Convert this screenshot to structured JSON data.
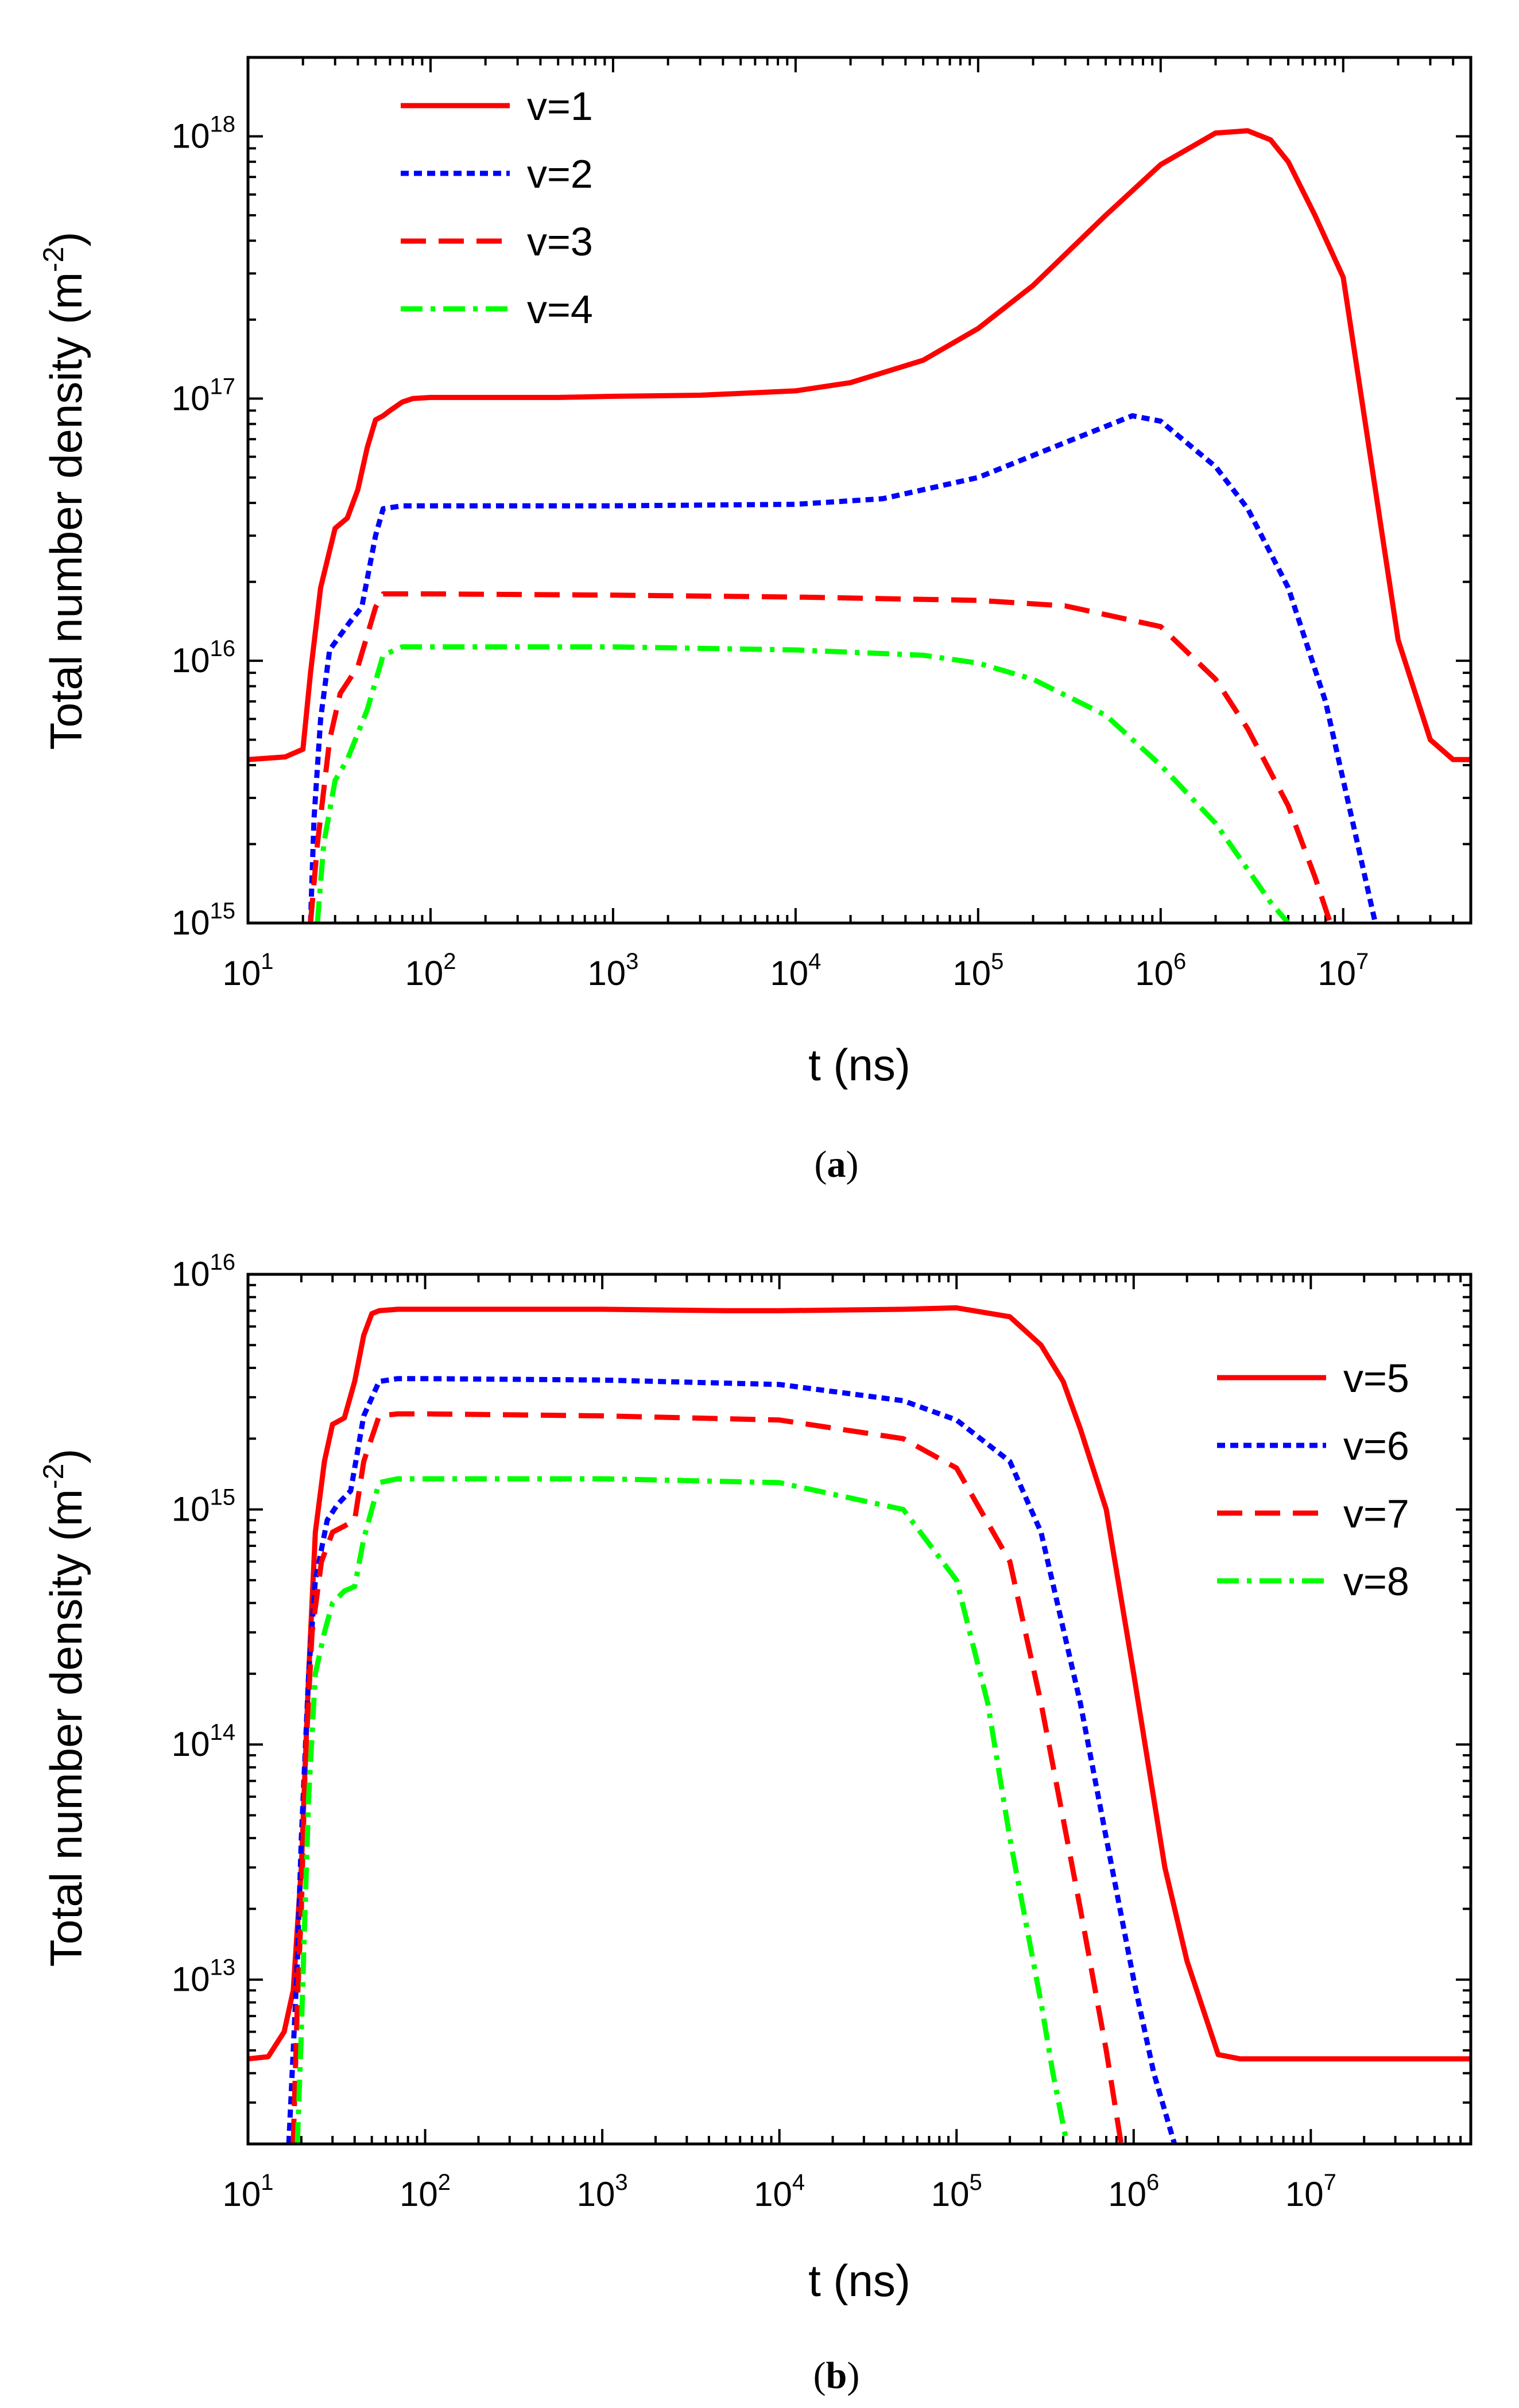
{
  "chart_data": [
    {
      "type": "line",
      "panel": "a",
      "caption_letter": "a",
      "xlabel": "t (ns)",
      "ylabel_main": "Total number density (m",
      "ylabel_sup": "-2",
      "ylabel_close": ")",
      "xscale": "log",
      "yscale": "log",
      "xlim": [
        10,
        50000000
      ],
      "ylim": [
        1000000000000000.0,
        2e+18
      ],
      "x_ticks": [
        {
          "base": "10",
          "exp": "1"
        },
        {
          "base": "10",
          "exp": "2"
        },
        {
          "base": "10",
          "exp": "3"
        },
        {
          "base": "10",
          "exp": "4"
        },
        {
          "base": "10",
          "exp": "5"
        },
        {
          "base": "10",
          "exp": "6"
        },
        {
          "base": "10",
          "exp": "7"
        }
      ],
      "y_ticks": [
        {
          "base": "10",
          "exp": "15"
        },
        {
          "base": "10",
          "exp": "16"
        },
        {
          "base": "10",
          "exp": "17"
        },
        {
          "base": "10",
          "exp": "18"
        }
      ],
      "legend_position": "top-left",
      "series": [
        {
          "name": "v=1",
          "color": "#ff0000",
          "style": "solid",
          "x": [
            10,
            16,
            20,
            22,
            25,
            30,
            35,
            40,
            45,
            50,
            55,
            60,
            70,
            80,
            100,
            200,
            500,
            1000,
            3000,
            10000,
            20000,
            50000,
            100000,
            200000,
            500000,
            1000000,
            2000000,
            3000000,
            4000000,
            5000000,
            7000000,
            10000000,
            20000000,
            30000000,
            40000000,
            50000000
          ],
          "y": [
            4200000000000000.0,
            4300000000000000.0,
            4600000000000000.0,
            9000000000000000.0,
            1.9e+16,
            3.2e+16,
            3.5e+16,
            4.5e+16,
            6.5e+16,
            8.3e+16,
            8.6e+16,
            9e+16,
            9.7e+16,
            1e+17,
            1.01e+17,
            1.01e+17,
            1.01e+17,
            1.02e+17,
            1.03e+17,
            1.07e+17,
            1.15e+17,
            1.4e+17,
            1.85e+17,
            2.7e+17,
            5e+17,
            7.8e+17,
            1.03e+18,
            1.05e+18,
            9.7e+17,
            8e+17,
            5e+17,
            2.9e+17,
            1.2e+16,
            5000000000000000.0,
            4200000000000000.0,
            4200000000000000.0
          ]
        },
        {
          "name": "v=2",
          "color": "#0000ff",
          "style": "dotted",
          "x": [
            22,
            23,
            25,
            28,
            32,
            36,
            42,
            50,
            55,
            70,
            100,
            300,
            1000,
            10000,
            30000,
            100000,
            300000,
            700000,
            1000000,
            2000000,
            3000000,
            5000000,
            8000000,
            12000000,
            15000000
          ],
          "y": [
            1000000000000000.0,
            2500000000000000.0,
            6000000000000000.0,
            1.1e+16,
            1.25e+16,
            1.4e+16,
            1.6e+16,
            3e+16,
            3.8e+16,
            3.9e+16,
            3.9e+16,
            3.9e+16,
            3.9e+16,
            3.95e+16,
            4.15e+16,
            5e+16,
            6.8e+16,
            8.6e+16,
            8.2e+16,
            5.5e+16,
            3.8e+16,
            1.9e+16,
            7000000000000000.0,
            2000000000000000.0,
            1000000000000000.0
          ]
        },
        {
          "name": "v=3",
          "color": "#ff0000",
          "style": "dashed",
          "x": [
            22,
            24,
            28,
            32,
            40,
            45,
            50,
            55,
            70,
            100,
            1000,
            10000,
            100000,
            300000,
            1000000,
            2000000,
            3000000,
            5000000,
            7000000,
            8500000
          ],
          "y": [
            1000000000000000.0,
            2000000000000000.0,
            5000000000000000.0,
            7500000000000000.0,
            9500000000000000.0,
            1.25e+16,
            1.6e+16,
            1.8e+16,
            1.8e+16,
            1.8e+16,
            1.78e+16,
            1.75e+16,
            1.7e+16,
            1.62e+16,
            1.35e+16,
            8500000000000000.0,
            5500000000000000.0,
            2800000000000000.0,
            1500000000000000.0,
            1000000000000000.0
          ]
        },
        {
          "name": "v=4",
          "color": "#00ff00",
          "style": "dashdot",
          "x": [
            24,
            26,
            30,
            35,
            45,
            55,
            70,
            100,
            1000,
            10000,
            50000,
            100000,
            200000,
            500000,
            1000000,
            2000000,
            3000000,
            4000000,
            5000000
          ],
          "y": [
            1000000000000000.0,
            2000000000000000.0,
            3500000000000000.0,
            4200000000000000.0,
            6500000000000000.0,
            1.05e+16,
            1.13e+16,
            1.13e+16,
            1.13e+16,
            1.1e+16,
            1.05e+16,
            9800000000000000.0,
            8500000000000000.0,
            6200000000000000.0,
            4000000000000000.0,
            2400000000000000.0,
            1600000000000000.0,
            1200000000000000.0,
            1000000000000000.0
          ]
        }
      ]
    },
    {
      "type": "line",
      "panel": "b",
      "caption_letter": "b",
      "xlabel": "t (ns)",
      "ylabel_main": "Total number density (m",
      "ylabel_sup": "-2",
      "ylabel_close": ")",
      "xscale": "log",
      "yscale": "log",
      "xlim": [
        10,
        80000000
      ],
      "ylim": [
        2000000000000.0,
        1e+16
      ],
      "x_ticks": [
        {
          "base": "10",
          "exp": "1"
        },
        {
          "base": "10",
          "exp": "2"
        },
        {
          "base": "10",
          "exp": "3"
        },
        {
          "base": "10",
          "exp": "4"
        },
        {
          "base": "10",
          "exp": "5"
        },
        {
          "base": "10",
          "exp": "6"
        },
        {
          "base": "10",
          "exp": "7"
        }
      ],
      "y_ticks": [
        {
          "base": "10",
          "exp": "13"
        },
        {
          "base": "10",
          "exp": "14"
        },
        {
          "base": "10",
          "exp": "15"
        },
        {
          "base": "10",
          "exp": "16"
        }
      ],
      "legend_position": "right",
      "series": [
        {
          "name": "v=5",
          "color": "#ff0000",
          "style": "solid",
          "x": [
            10,
            13,
            16,
            18,
            20,
            22,
            24,
            27,
            30,
            35,
            40,
            45,
            50,
            55,
            70,
            100,
            1000,
            5000,
            10000,
            50000,
            100000,
            200000,
            300000,
            400000,
            500000,
            700000,
            1000000,
            1500000,
            2000000,
            3000000,
            4000000,
            10000000,
            80000000
          ],
          "y": [
            4600000000000.0,
            4700000000000.0,
            6000000000000.0,
            9000000000000.0,
            30000000000000.0,
            200000000000000.0,
            800000000000000.0,
            1600000000000000.0,
            2300000000000000.0,
            2450000000000000.0,
            3500000000000000.0,
            5500000000000000.0,
            6800000000000000.0,
            7000000000000000.0,
            7100000000000000.0,
            7100000000000000.0,
            7100000000000000.0,
            7000000000000000.0,
            7000000000000000.0,
            7100000000000000.0,
            7200000000000000.0,
            6600000000000000.0,
            5000000000000000.0,
            3500000000000000.0,
            2200000000000000.0,
            1000000000000000.0,
            200000000000000.0,
            30000000000000.0,
            12000000000000.0,
            4800000000000.0,
            4600000000000.0,
            4600000000000.0,
            4600000000000.0
          ]
        },
        {
          "name": "v=6",
          "color": "#0000ff",
          "style": "dotted",
          "x": [
            17,
            18,
            19,
            20,
            22,
            24,
            28,
            32,
            38,
            45,
            55,
            70,
            100,
            1000,
            10000,
            50000,
            100000,
            200000,
            300000,
            500000,
            700000,
            1000000,
            1300000,
            1700000
          ],
          "y": [
            2000000000000.0,
            5000000000000.0,
            12000000000000.0,
            40000000000000.0,
            200000000000000.0,
            500000000000000.0,
            900000000000000.0,
            1050000000000000.0,
            1200000000000000.0,
            2500000000000000.0,
            3500000000000000.0,
            3600000000000000.0,
            3600000000000000.0,
            3550000000000000.0,
            3400000000000000.0,
            2900000000000000.0,
            2400000000000000.0,
            1600000000000000.0,
            800000000000000.0,
            150000000000000.0,
            40000000000000.0,
            10000000000000.0,
            4000000000000.0,
            2000000000000.0
          ]
        },
        {
          "name": "v=7",
          "color": "#ff0000",
          "style": "dashed",
          "x": [
            18,
            19,
            20,
            21,
            23,
            26,
            30,
            35,
            40,
            45,
            55,
            70,
            100,
            1000,
            10000,
            50000,
            100000,
            200000,
            300000,
            500000,
            700000,
            850000
          ],
          "y": [
            2000000000000.0,
            8000000000000.0,
            20000000000000.0,
            80000000000000.0,
            300000000000000.0,
            600000000000000.0,
            800000000000000.0,
            850000000000000.0,
            900000000000000.0,
            1600000000000000.0,
            2500000000000000.0,
            2550000000000000.0,
            2550000000000000.0,
            2500000000000000.0,
            2400000000000000.0,
            2000000000000000.0,
            1500000000000000.0,
            600000000000000.0,
            150000000000000.0,
            20000000000000.0,
            5000000000000.0,
            2000000000000.0
          ]
        },
        {
          "name": "v=8",
          "color": "#00ff00",
          "style": "dashdot",
          "x": [
            19,
            20,
            21,
            22,
            24,
            27,
            30,
            35,
            40,
            45,
            55,
            70,
            100,
            1000,
            10000,
            50000,
            100000,
            150000,
            200000,
            300000,
            350000,
            420000
          ],
          "y": [
            2000000000000.0,
            6000000000000.0,
            20000000000000.0,
            60000000000000.0,
            200000000000000.0,
            300000000000000.0,
            400000000000000.0,
            450000000000000.0,
            470000000000000.0,
            750000000000000.0,
            1300000000000000.0,
            1350000000000000.0,
            1350000000000000.0,
            1350000000000000.0,
            1300000000000000.0,
            1000000000000000.0,
            500000000000000.0,
            150000000000000.0,
            40000000000000.0,
            8000000000000.0,
            4000000000000.0,
            2000000000000.0
          ]
        }
      ]
    }
  ]
}
